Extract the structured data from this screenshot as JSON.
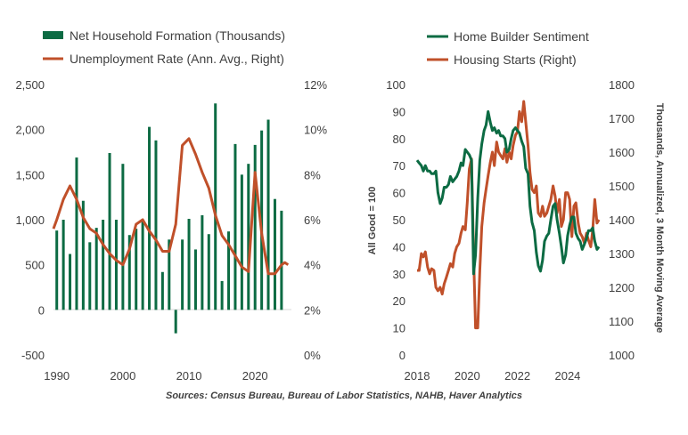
{
  "chart_data": [
    {
      "type": "bar+line",
      "legend": [
        {
          "label": "Net Household Formation (Thousands)",
          "color": "#0c6b43",
          "kind": "bar"
        },
        {
          "label": "Unemployment Rate (Ann. Avg., Right)",
          "color": "#c0502a",
          "kind": "line"
        }
      ],
      "left_axis": {
        "ticks": [
          "2,500",
          "2,000",
          "1,500",
          "1,000",
          "500",
          "0",
          "-500"
        ],
        "ylim": [
          -500,
          2500
        ]
      },
      "right_axis": {
        "ticks": [
          "12%",
          "10%",
          "8%",
          "6%",
          "4%",
          "2%",
          "0%"
        ],
        "ylim": [
          0,
          12
        ]
      },
      "x_axis": {
        "ticks": [
          "1990",
          "2000",
          "2010",
          "2020"
        ],
        "xlim": [
          1989.5,
          2025.5
        ]
      },
      "bar_series": {
        "name": "Net Household Formation (Thousands)",
        "x": [
          1990,
          1991,
          1992,
          1993,
          1994,
          1995,
          1996,
          1997,
          1998,
          1999,
          2000,
          2001,
          2002,
          2003,
          2004,
          2005,
          2006,
          2007,
          2008,
          2009,
          2010,
          2011,
          2012,
          2013,
          2014,
          2015,
          2016,
          2017,
          2018,
          2019,
          2020,
          2021,
          2022,
          2023,
          2024
        ],
        "values": [
          880,
          1000,
          620,
          1690,
          1210,
          750,
          910,
          1000,
          1740,
          1000,
          1620,
          830,
          900,
          980,
          2030,
          1880,
          420,
          780,
          -260,
          780,
          1010,
          670,
          1050,
          840,
          2290,
          320,
          870,
          1840,
          1500,
          1620,
          1830,
          1990,
          2110,
          1230,
          1100
        ]
      },
      "line_series": {
        "name": "Unemployment Rate (Ann. Avg., Right)",
        "x": [
          1989.5,
          1990,
          1991,
          1992,
          1993,
          1994,
          1995,
          1996,
          1997,
          1998,
          1999,
          2000,
          2001,
          2002,
          2003,
          2004,
          2005,
          2006,
          2007,
          2008,
          2009,
          2010,
          2011,
          2012,
          2013,
          2014,
          2015,
          2016,
          2017,
          2018,
          2019,
          2020,
          2021,
          2022,
          2023,
          2024,
          2024.5,
          2025
        ],
        "values": [
          5.6,
          6.0,
          6.9,
          7.5,
          6.9,
          6.1,
          5.6,
          5.4,
          4.9,
          4.5,
          4.2,
          4.0,
          4.7,
          5.8,
          6.0,
          5.5,
          5.1,
          4.6,
          4.6,
          5.8,
          9.3,
          9.6,
          8.9,
          8.1,
          7.4,
          6.2,
          5.3,
          4.9,
          4.4,
          3.9,
          3.7,
          8.1,
          5.4,
          3.6,
          3.6,
          4.0,
          4.1,
          4.0
        ]
      }
    },
    {
      "type": "line",
      "legend": [
        {
          "label": "Home Builder Sentiment",
          "color": "#0c6b43"
        },
        {
          "label": "Housing Starts (Right)",
          "color": "#c0502a"
        }
      ],
      "left_axis": {
        "ticks": [
          "100",
          "90",
          "80",
          "70",
          "60",
          "50",
          "40",
          "30",
          "20",
          "10",
          "0"
        ],
        "ylim": [
          0,
          100
        ],
        "label": "All Good = 100"
      },
      "right_axis": {
        "ticks": [
          "1800",
          "1700",
          "1600",
          "1500",
          "1400",
          "1300",
          "1200",
          "1100",
          "1000"
        ],
        "ylim": [
          1000,
          1800
        ],
        "label": "Thousands, Annualized, 3 Month Moving Average"
      },
      "x_axis": {
        "ticks": [
          "2018",
          "2020",
          "2022",
          "2024"
        ],
        "xlim": [
          2018,
          2025.6
        ]
      },
      "series": [
        {
          "name": "Home Builder Sentiment",
          "x": [
            2018.0,
            2018.08,
            2018.17,
            2018.25,
            2018.33,
            2018.42,
            2018.5,
            2018.58,
            2018.67,
            2018.75,
            2018.83,
            2018.92,
            2019.0,
            2019.08,
            2019.17,
            2019.25,
            2019.33,
            2019.42,
            2019.5,
            2019.58,
            2019.67,
            2019.75,
            2019.83,
            2019.92,
            2020.0,
            2020.08,
            2020.17,
            2020.25,
            2020.33,
            2020.42,
            2020.5,
            2020.58,
            2020.67,
            2020.75,
            2020.83,
            2020.92,
            2021.0,
            2021.08,
            2021.17,
            2021.25,
            2021.33,
            2021.42,
            2021.5,
            2021.58,
            2021.67,
            2021.75,
            2021.83,
            2021.92,
            2022.0,
            2022.08,
            2022.17,
            2022.25,
            2022.33,
            2022.42,
            2022.5,
            2022.58,
            2022.67,
            2022.75,
            2022.83,
            2022.92,
            2023.0,
            2023.08,
            2023.17,
            2023.25,
            2023.33,
            2023.42,
            2023.5,
            2023.58,
            2023.67,
            2023.75,
            2023.83,
            2023.92,
            2024.0,
            2024.08,
            2024.17,
            2024.25,
            2024.33,
            2024.42,
            2024.5,
            2024.58,
            2024.67,
            2024.75,
            2024.83,
            2024.92,
            2025.0,
            2025.08,
            2025.17,
            2025.25
          ],
          "values": [
            72,
            71,
            70,
            68,
            70,
            68,
            68,
            67,
            67,
            68,
            60,
            56,
            58,
            62,
            62,
            63,
            66,
            64,
            65,
            66,
            68,
            71,
            70,
            76,
            75,
            74,
            72,
            30,
            37,
            58,
            72,
            78,
            83,
            85,
            90,
            86,
            83,
            84,
            82,
            83,
            81,
            81,
            80,
            75,
            76,
            80,
            83,
            84,
            83,
            82,
            79,
            77,
            69,
            67,
            55,
            49,
            46,
            38,
            33,
            31,
            35,
            42,
            44,
            45,
            50,
            55,
            56,
            50,
            45,
            40,
            34,
            37,
            44,
            48,
            51,
            51,
            45,
            43,
            42,
            39,
            41,
            43,
            46,
            46,
            47,
            42,
            39,
            40
          ]
        },
        {
          "name": "Housing Starts (Right)",
          "x": [
            2018.0,
            2018.08,
            2018.17,
            2018.25,
            2018.33,
            2018.42,
            2018.5,
            2018.58,
            2018.67,
            2018.75,
            2018.83,
            2018.92,
            2019.0,
            2019.08,
            2019.17,
            2019.25,
            2019.33,
            2019.42,
            2019.5,
            2019.58,
            2019.67,
            2019.75,
            2019.83,
            2019.92,
            2020.0,
            2020.08,
            2020.17,
            2020.25,
            2020.33,
            2020.42,
            2020.5,
            2020.58,
            2020.67,
            2020.75,
            2020.83,
            2020.92,
            2021.0,
            2021.08,
            2021.17,
            2021.25,
            2021.33,
            2021.42,
            2021.5,
            2021.58,
            2021.67,
            2021.75,
            2021.83,
            2021.92,
            2022.0,
            2022.08,
            2022.17,
            2022.25,
            2022.33,
            2022.42,
            2022.5,
            2022.58,
            2022.67,
            2022.75,
            2022.83,
            2022.92,
            2023.0,
            2023.08,
            2023.17,
            2023.25,
            2023.33,
            2023.42,
            2023.5,
            2023.58,
            2023.67,
            2023.75,
            2023.83,
            2023.92,
            2024.0,
            2024.08,
            2024.17,
            2024.25,
            2024.33,
            2024.42,
            2024.5,
            2024.58,
            2024.67,
            2024.75,
            2024.83,
            2024.92,
            2025.0,
            2025.08,
            2025.17,
            2025.25
          ],
          "values": [
            1250,
            1250,
            1300,
            1290,
            1305,
            1260,
            1240,
            1255,
            1250,
            1200,
            1190,
            1200,
            1180,
            1210,
            1230,
            1250,
            1270,
            1260,
            1300,
            1320,
            1330,
            1360,
            1380,
            1370,
            1450,
            1550,
            1580,
            1300,
            1080,
            1080,
            1250,
            1380,
            1450,
            1490,
            1530,
            1570,
            1600,
            1560,
            1630,
            1600,
            1590,
            1580,
            1610,
            1570,
            1600,
            1580,
            1620,
            1650,
            1660,
            1720,
            1690,
            1750,
            1690,
            1620,
            1540,
            1490,
            1480,
            1500,
            1420,
            1410,
            1440,
            1410,
            1420,
            1440,
            1460,
            1500,
            1470,
            1420,
            1460,
            1380,
            1400,
            1480,
            1480,
            1460,
            1350,
            1440,
            1450,
            1390,
            1360,
            1350,
            1330,
            1360,
            1340,
            1320,
            1370,
            1460,
            1390,
            1400
          ]
        }
      ]
    }
  ],
  "source": "Sources: Census Bureau, Bureau of Labor Statistics, NAHB, Haver Analytics"
}
